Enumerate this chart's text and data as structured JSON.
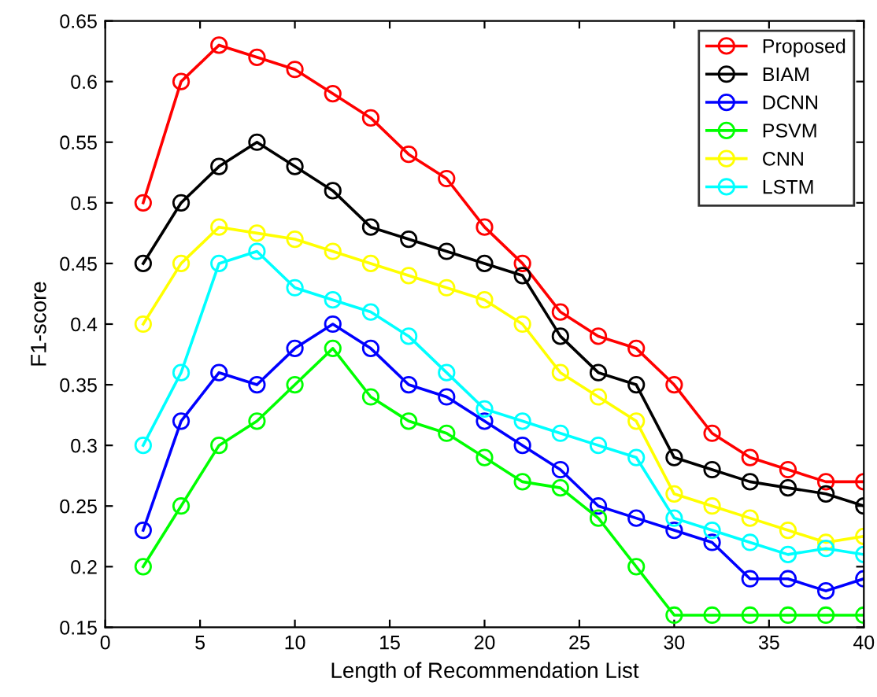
{
  "chart_data": {
    "type": "line",
    "xlabel": "Length of Recommendation List",
    "ylabel": "F1-score",
    "x": [
      2,
      4,
      6,
      8,
      10,
      12,
      14,
      16,
      18,
      20,
      22,
      24,
      26,
      28,
      30,
      32,
      34,
      36,
      38,
      40
    ],
    "series": [
      {
        "name": "Proposed",
        "color": "#ff0000",
        "values": [
          0.5,
          0.6,
          0.63,
          0.62,
          0.61,
          0.59,
          0.57,
          0.54,
          0.52,
          0.48,
          0.45,
          0.41,
          0.39,
          0.38,
          0.35,
          0.31,
          0.29,
          0.28,
          0.27,
          0.27
        ]
      },
      {
        "name": "BIAM",
        "color": "#000000",
        "values": [
          0.45,
          0.5,
          0.53,
          0.55,
          0.53,
          0.51,
          0.48,
          0.47,
          0.46,
          0.45,
          0.44,
          0.39,
          0.36,
          0.35,
          0.29,
          0.28,
          0.27,
          0.265,
          0.26,
          0.25
        ]
      },
      {
        "name": "DCNN",
        "color": "#0000ff",
        "values": [
          0.23,
          0.32,
          0.36,
          0.35,
          0.38,
          0.4,
          0.38,
          0.35,
          0.34,
          0.32,
          0.3,
          0.28,
          0.25,
          0.24,
          0.23,
          0.22,
          0.19,
          0.19,
          0.18,
          0.19
        ]
      },
      {
        "name": "PSVM",
        "color": "#00ff00",
        "values": [
          0.2,
          0.25,
          0.3,
          0.32,
          0.35,
          0.38,
          0.34,
          0.32,
          0.31,
          0.29,
          0.27,
          0.265,
          0.24,
          0.2,
          0.16,
          0.16,
          0.16,
          0.16,
          0.16,
          0.16
        ]
      },
      {
        "name": "CNN",
        "color": "#ffff00",
        "values": [
          0.4,
          0.45,
          0.48,
          0.475,
          0.47,
          0.46,
          0.45,
          0.44,
          0.43,
          0.42,
          0.4,
          0.36,
          0.34,
          0.32,
          0.26,
          0.25,
          0.24,
          0.23,
          0.22,
          0.225
        ]
      },
      {
        "name": "LSTM",
        "color": "#00ffff",
        "values": [
          0.3,
          0.36,
          0.45,
          0.46,
          0.43,
          0.42,
          0.41,
          0.39,
          0.36,
          0.33,
          0.32,
          0.31,
          0.3,
          0.29,
          0.24,
          0.23,
          0.22,
          0.21,
          0.215,
          0.21
        ]
      }
    ],
    "xlim": [
      0,
      40
    ],
    "xticks": [
      0,
      5,
      10,
      15,
      20,
      25,
      30,
      35,
      40
    ],
    "ylim": [
      0.15,
      0.65
    ],
    "yticks": [
      0.15,
      0.2,
      0.25,
      0.3,
      0.35,
      0.4,
      0.45,
      0.5,
      0.55,
      0.6,
      0.65
    ],
    "legend": "top right",
    "marker": "circle",
    "line_style": "solid",
    "grid": false
  }
}
